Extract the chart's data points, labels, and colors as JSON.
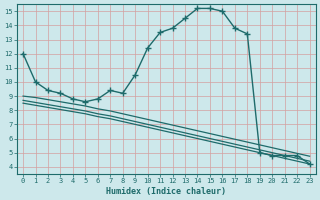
{
  "xlabel": "Humidex (Indice chaleur)",
  "ylabel": "",
  "bg_color": "#cde8eb",
  "grid_color": "#b8d4d8",
  "line_color": "#1e6b6b",
  "xlim": [
    -0.5,
    23.5
  ],
  "ylim": [
    3.5,
    15.5
  ],
  "xticks": [
    0,
    1,
    2,
    3,
    4,
    5,
    6,
    7,
    8,
    9,
    10,
    11,
    12,
    13,
    14,
    15,
    16,
    17,
    18,
    19,
    20,
    21,
    22,
    23
  ],
  "yticks": [
    4,
    5,
    6,
    7,
    8,
    9,
    10,
    11,
    12,
    13,
    14,
    15
  ],
  "series": [
    {
      "x": [
        0,
        1,
        2,
        3,
        4,
        5,
        6,
        7,
        8,
        9,
        10,
        11,
        12,
        13,
        14,
        15,
        16,
        17,
        18,
        19,
        20,
        21,
        22,
        23
      ],
      "y": [
        12.0,
        10.0,
        9.4,
        9.2,
        8.8,
        8.6,
        8.8,
        9.4,
        9.2,
        10.5,
        12.4,
        13.5,
        13.8,
        14.5,
        15.2,
        15.2,
        15.0,
        13.8,
        13.4,
        5.0,
        4.8,
        4.8,
        4.8,
        4.2
      ],
      "marker": "+",
      "markersize": 4,
      "linewidth": 1.0,
      "has_marker": true
    },
    {
      "x": [
        0,
        1,
        2,
        3,
        4,
        5,
        6,
        7,
        8,
        9,
        10,
        11,
        12,
        13,
        14,
        15,
        16,
        17,
        18,
        19,
        20,
        21,
        22,
        23
      ],
      "y": [
        9.0,
        8.9,
        8.75,
        8.6,
        8.45,
        8.3,
        8.1,
        7.95,
        7.75,
        7.55,
        7.35,
        7.15,
        6.95,
        6.75,
        6.55,
        6.35,
        6.15,
        5.95,
        5.75,
        5.55,
        5.35,
        5.15,
        4.95,
        4.75
      ],
      "marker": null,
      "markersize": 0,
      "linewidth": 0.9,
      "has_marker": false
    },
    {
      "x": [
        0,
        1,
        2,
        3,
        4,
        5,
        6,
        7,
        8,
        9,
        10,
        11,
        12,
        13,
        14,
        15,
        16,
        17,
        18,
        19,
        20,
        21,
        22,
        23
      ],
      "y": [
        8.7,
        8.55,
        8.4,
        8.25,
        8.1,
        7.95,
        7.75,
        7.6,
        7.4,
        7.2,
        7.0,
        6.8,
        6.6,
        6.4,
        6.2,
        6.0,
        5.8,
        5.6,
        5.4,
        5.2,
        5.0,
        4.8,
        4.6,
        4.4
      ],
      "marker": null,
      "markersize": 0,
      "linewidth": 0.9,
      "has_marker": false
    },
    {
      "x": [
        0,
        1,
        2,
        3,
        4,
        5,
        6,
        7,
        8,
        9,
        10,
        11,
        12,
        13,
        14,
        15,
        16,
        17,
        18,
        19,
        20,
        21,
        22,
        23
      ],
      "y": [
        8.5,
        8.35,
        8.2,
        8.05,
        7.9,
        7.75,
        7.55,
        7.4,
        7.2,
        7.0,
        6.8,
        6.6,
        6.4,
        6.2,
        6.0,
        5.8,
        5.6,
        5.4,
        5.2,
        5.0,
        4.8,
        4.6,
        4.4,
        4.2
      ],
      "marker": null,
      "markersize": 0,
      "linewidth": 0.9,
      "has_marker": false
    }
  ]
}
